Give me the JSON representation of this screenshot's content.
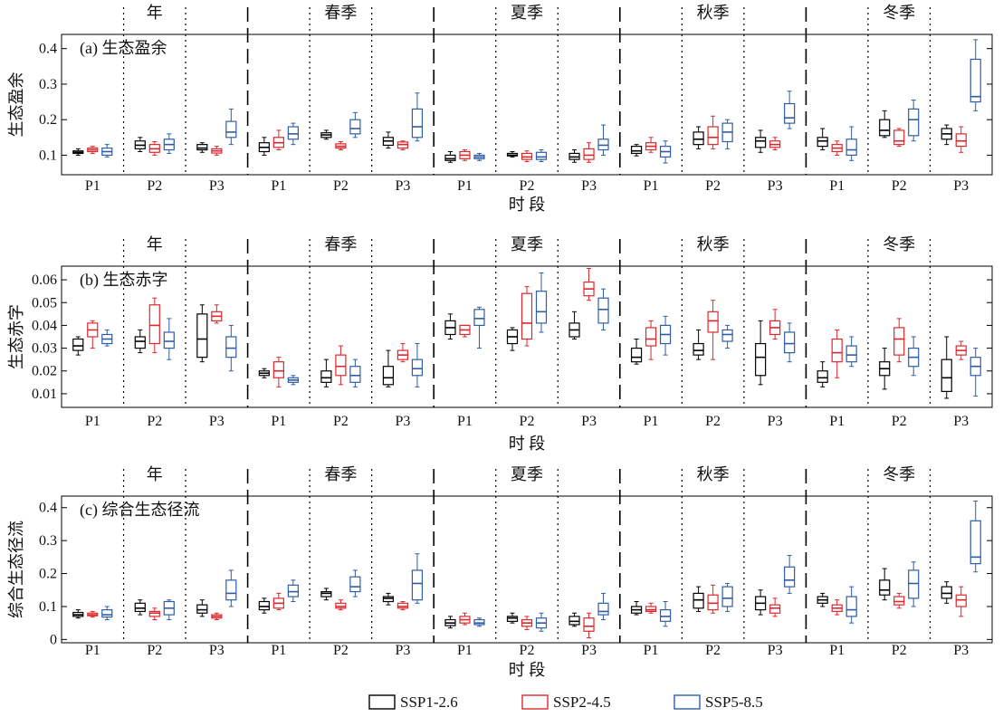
{
  "figure": {
    "seasons": [
      "年",
      "春季",
      "夏季",
      "秋季",
      "冬季"
    ],
    "periods": [
      "P1",
      "P2",
      "P3"
    ],
    "xlabel": "时 段"
  },
  "legend": [
    {
      "name": "SSP1-2.6",
      "color": "#000000"
    },
    {
      "name": "SSP2-4.5",
      "color": "#e0262b"
    },
    {
      "name": "SSP5-8.5",
      "color": "#2e5da6"
    }
  ],
  "chart_data": [
    {
      "type": "box",
      "title": "(a) 生态盈余",
      "ylabel": "生态盈余",
      "xlabel": "时 段",
      "ylim": [
        0.045,
        0.44
      ],
      "yticks": [
        0.1,
        0.2,
        0.3,
        0.4
      ],
      "ytick_labels": [
        "0.1",
        "0.2",
        "0.3",
        "0.4"
      ],
      "grid": false,
      "legend_position": "bottom",
      "boxes": [
        [
          [
            0.1,
            0.105,
            0.108,
            0.112,
            0.118
          ],
          [
            0.105,
            0.11,
            0.115,
            0.12,
            0.125
          ],
          [
            0.095,
            0.1,
            0.11,
            0.12,
            0.13
          ]
        ],
        [
          [
            0.11,
            0.118,
            0.128,
            0.14,
            0.15
          ],
          [
            0.1,
            0.108,
            0.118,
            0.13,
            0.138
          ],
          [
            0.105,
            0.115,
            0.13,
            0.145,
            0.16
          ]
        ],
        [
          [
            0.108,
            0.115,
            0.12,
            0.13,
            0.135
          ],
          [
            0.1,
            0.106,
            0.112,
            0.118,
            0.125
          ],
          [
            0.13,
            0.15,
            0.165,
            0.195,
            0.23
          ]
        ],
        [
          [
            0.1,
            0.11,
            0.122,
            0.135,
            0.15
          ],
          [
            0.115,
            0.122,
            0.135,
            0.15,
            0.17
          ],
          [
            0.13,
            0.145,
            0.16,
            0.18,
            0.19
          ]
        ],
        [
          [
            0.145,
            0.15,
            0.157,
            0.163,
            0.17
          ],
          [
            0.115,
            0.12,
            0.125,
            0.132,
            0.138
          ],
          [
            0.15,
            0.16,
            0.175,
            0.2,
            0.22
          ]
        ],
        [
          [
            0.12,
            0.128,
            0.14,
            0.15,
            0.165
          ],
          [
            0.115,
            0.12,
            0.13,
            0.137,
            0.14
          ],
          [
            0.14,
            0.15,
            0.18,
            0.23,
            0.275
          ]
        ],
        [
          [
            0.08,
            0.085,
            0.09,
            0.1,
            0.11
          ],
          [
            0.085,
            0.09,
            0.1,
            0.11,
            0.115
          ],
          [
            0.085,
            0.09,
            0.095,
            0.1,
            0.105
          ]
        ],
        [
          [
            0.095,
            0.098,
            0.1,
            0.105,
            0.11
          ],
          [
            0.082,
            0.088,
            0.095,
            0.105,
            0.112
          ],
          [
            0.082,
            0.088,
            0.095,
            0.108,
            0.115
          ]
        ],
        [
          [
            0.08,
            0.088,
            0.095,
            0.105,
            0.115
          ],
          [
            0.08,
            0.088,
            0.1,
            0.118,
            0.135
          ],
          [
            0.1,
            0.115,
            0.128,
            0.145,
            0.185
          ]
        ],
        [
          [
            0.098,
            0.105,
            0.112,
            0.125,
            0.13
          ],
          [
            0.108,
            0.115,
            0.125,
            0.135,
            0.15
          ],
          [
            0.078,
            0.095,
            0.11,
            0.125,
            0.14
          ]
        ],
        [
          [
            0.118,
            0.13,
            0.145,
            0.165,
            0.18
          ],
          [
            0.118,
            0.13,
            0.15,
            0.18,
            0.21
          ],
          [
            0.118,
            0.138,
            0.165,
            0.19,
            0.2
          ]
        ],
        [
          [
            0.108,
            0.122,
            0.14,
            0.15,
            0.17
          ],
          [
            0.115,
            0.122,
            0.13,
            0.14,
            0.15
          ],
          [
            0.175,
            0.19,
            0.205,
            0.245,
            0.28
          ]
        ],
        [
          [
            0.115,
            0.125,
            0.14,
            0.15,
            0.175
          ],
          [
            0.1,
            0.11,
            0.12,
            0.13,
            0.14
          ],
          [
            0.085,
            0.1,
            0.115,
            0.145,
            0.18
          ]
        ],
        [
          [
            0.15,
            0.155,
            0.17,
            0.2,
            0.225
          ],
          [
            0.125,
            0.13,
            0.14,
            0.17,
            0.175
          ],
          [
            0.14,
            0.155,
            0.2,
            0.23,
            0.255
          ]
        ],
        [
          [
            0.13,
            0.145,
            0.16,
            0.175,
            0.185
          ],
          [
            0.108,
            0.125,
            0.14,
            0.16,
            0.18
          ],
          [
            0.225,
            0.25,
            0.265,
            0.37,
            0.425
          ]
        ]
      ]
    },
    {
      "type": "box",
      "title": "(b) 生态赤字",
      "ylabel": "生态赤字",
      "xlabel": "时 段",
      "ylim": [
        0.004,
        0.066
      ],
      "yticks": [
        0.01,
        0.02,
        0.03,
        0.04,
        0.05,
        0.06
      ],
      "ytick_labels": [
        "0.01",
        "0.02",
        "0.03",
        "0.04",
        "0.05",
        "0.06"
      ],
      "grid": false,
      "legend_position": "bottom",
      "boxes": [
        [
          [
            0.027,
            0.029,
            0.031,
            0.034,
            0.035
          ],
          [
            0.03,
            0.035,
            0.038,
            0.041,
            0.042
          ],
          [
            0.031,
            0.032,
            0.034,
            0.036,
            0.038
          ]
        ],
        [
          [
            0.028,
            0.03,
            0.033,
            0.035,
            0.038
          ],
          [
            0.028,
            0.032,
            0.04,
            0.049,
            0.052
          ],
          [
            0.025,
            0.03,
            0.033,
            0.037,
            0.043
          ]
        ],
        [
          [
            0.024,
            0.026,
            0.034,
            0.045,
            0.049
          ],
          [
            0.041,
            0.042,
            0.044,
            0.046,
            0.049
          ],
          [
            0.02,
            0.026,
            0.03,
            0.035,
            0.04
          ]
        ],
        [
          [
            0.017,
            0.018,
            0.019,
            0.02,
            0.021
          ],
          [
            0.013,
            0.017,
            0.02,
            0.024,
            0.026
          ],
          [
            0.014,
            0.015,
            0.016,
            0.017,
            0.018
          ]
        ],
        [
          [
            0.013,
            0.015,
            0.017,
            0.02,
            0.025
          ],
          [
            0.014,
            0.018,
            0.022,
            0.027,
            0.031
          ],
          [
            0.013,
            0.015,
            0.018,
            0.022,
            0.025
          ]
        ],
        [
          [
            0.013,
            0.014,
            0.017,
            0.022,
            0.029
          ],
          [
            0.024,
            0.025,
            0.027,
            0.029,
            0.032
          ],
          [
            0.013,
            0.018,
            0.021,
            0.025,
            0.032
          ]
        ],
        [
          [
            0.034,
            0.036,
            0.039,
            0.042,
            0.045
          ],
          [
            0.035,
            0.036,
            0.038,
            0.04,
            0.04
          ],
          [
            0.03,
            0.04,
            0.043,
            0.047,
            0.048
          ]
        ],
        [
          [
            0.029,
            0.032,
            0.035,
            0.038,
            0.039
          ],
          [
            0.031,
            0.034,
            0.041,
            0.054,
            0.057
          ],
          [
            0.037,
            0.041,
            0.046,
            0.055,
            0.063
          ]
        ],
        [
          [
            0.034,
            0.035,
            0.038,
            0.041,
            0.046
          ],
          [
            0.051,
            0.053,
            0.056,
            0.059,
            0.065
          ],
          [
            0.038,
            0.041,
            0.047,
            0.052,
            0.056
          ]
        ],
        [
          [
            0.023,
            0.024,
            0.026,
            0.03,
            0.034
          ],
          [
            0.025,
            0.031,
            0.034,
            0.039,
            0.042
          ],
          [
            0.027,
            0.032,
            0.036,
            0.04,
            0.044
          ]
        ],
        [
          [
            0.025,
            0.027,
            0.029,
            0.032,
            0.038
          ],
          [
            0.025,
            0.037,
            0.042,
            0.046,
            0.051
          ],
          [
            0.03,
            0.033,
            0.036,
            0.038,
            0.04
          ]
        ],
        [
          [
            0.014,
            0.018,
            0.026,
            0.032,
            0.042
          ],
          [
            0.034,
            0.036,
            0.039,
            0.042,
            0.047
          ],
          [
            0.024,
            0.028,
            0.032,
            0.037,
            0.041
          ]
        ],
        [
          [
            0.013,
            0.015,
            0.017,
            0.02,
            0.024
          ],
          [
            0.017,
            0.024,
            0.028,
            0.034,
            0.038
          ],
          [
            0.022,
            0.024,
            0.027,
            0.031,
            0.035
          ]
        ],
        [
          [
            0.012,
            0.018,
            0.021,
            0.024,
            0.03
          ],
          [
            0.024,
            0.027,
            0.034,
            0.039,
            0.043
          ],
          [
            0.018,
            0.022,
            0.026,
            0.03,
            0.035
          ]
        ],
        [
          [
            0.008,
            0.011,
            0.017,
            0.025,
            0.035
          ],
          [
            0.025,
            0.027,
            0.029,
            0.031,
            0.033
          ],
          [
            0.009,
            0.018,
            0.022,
            0.026,
            0.03
          ]
        ]
      ]
    },
    {
      "type": "box",
      "title": "(c) 综合生态径流",
      "ylabel": "综合生态径流",
      "xlabel": "时 段",
      "ylim": [
        -0.01,
        0.435
      ],
      "yticks": [
        0,
        0.1,
        0.2,
        0.3,
        0.4
      ],
      "ytick_labels": [
        "0",
        "0.1",
        "0.2",
        "0.3",
        "0.4"
      ],
      "grid": false,
      "legend_position": "bottom",
      "boxes": [
        [
          [
            0.065,
            0.07,
            0.075,
            0.082,
            0.09
          ],
          [
            0.068,
            0.072,
            0.075,
            0.08,
            0.085
          ],
          [
            0.06,
            0.068,
            0.075,
            0.09,
            0.1
          ]
        ],
        [
          [
            0.075,
            0.085,
            0.095,
            0.11,
            0.12
          ],
          [
            0.06,
            0.07,
            0.08,
            0.085,
            0.095
          ],
          [
            0.06,
            0.075,
            0.095,
            0.115,
            0.12
          ]
        ],
        [
          [
            0.07,
            0.08,
            0.09,
            0.105,
            0.12
          ],
          [
            0.06,
            0.065,
            0.07,
            0.075,
            0.08
          ],
          [
            0.1,
            0.12,
            0.14,
            0.18,
            0.21
          ]
        ],
        [
          [
            0.08,
            0.09,
            0.1,
            0.115,
            0.125
          ],
          [
            0.09,
            0.095,
            0.11,
            0.125,
            0.14
          ],
          [
            0.115,
            0.13,
            0.145,
            0.165,
            0.18
          ]
        ],
        [
          [
            0.12,
            0.13,
            0.14,
            0.145,
            0.155
          ],
          [
            0.09,
            0.095,
            0.1,
            0.11,
            0.12
          ],
          [
            0.13,
            0.145,
            0.16,
            0.19,
            0.21
          ]
        ],
        [
          [
            0.105,
            0.115,
            0.125,
            0.13,
            0.14
          ],
          [
            0.09,
            0.095,
            0.1,
            0.11,
            0.115
          ],
          [
            0.11,
            0.12,
            0.17,
            0.21,
            0.26
          ]
        ],
        [
          [
            0.035,
            0.042,
            0.05,
            0.06,
            0.07
          ],
          [
            0.045,
            0.05,
            0.06,
            0.07,
            0.08
          ],
          [
            0.04,
            0.045,
            0.05,
            0.06,
            0.065
          ]
        ],
        [
          [
            0.05,
            0.055,
            0.065,
            0.07,
            0.08
          ],
          [
            0.03,
            0.04,
            0.05,
            0.06,
            0.07
          ],
          [
            0.025,
            0.035,
            0.05,
            0.065,
            0.08
          ]
        ],
        [
          [
            0.04,
            0.045,
            0.055,
            0.07,
            0.08
          ],
          [
            0.005,
            0.025,
            0.04,
            0.065,
            0.08
          ],
          [
            0.06,
            0.075,
            0.085,
            0.11,
            0.14
          ]
        ],
        [
          [
            0.075,
            0.08,
            0.09,
            0.1,
            0.115
          ],
          [
            0.08,
            0.085,
            0.09,
            0.1,
            0.11
          ],
          [
            0.04,
            0.055,
            0.07,
            0.09,
            0.115
          ]
        ],
        [
          [
            0.085,
            0.095,
            0.12,
            0.14,
            0.16
          ],
          [
            0.08,
            0.09,
            0.11,
            0.135,
            0.165
          ],
          [
            0.085,
            0.1,
            0.125,
            0.16,
            0.17
          ]
        ],
        [
          [
            0.075,
            0.09,
            0.11,
            0.13,
            0.15
          ],
          [
            0.07,
            0.08,
            0.095,
            0.105,
            0.125
          ],
          [
            0.14,
            0.16,
            0.18,
            0.22,
            0.255
          ]
        ],
        [
          [
            0.1,
            0.11,
            0.12,
            0.13,
            0.14
          ],
          [
            0.075,
            0.085,
            0.095,
            0.105,
            0.12
          ],
          [
            0.05,
            0.07,
            0.09,
            0.13,
            0.16
          ]
        ],
        [
          [
            0.12,
            0.135,
            0.15,
            0.18,
            0.215
          ],
          [
            0.095,
            0.105,
            0.115,
            0.13,
            0.14
          ],
          [
            0.1,
            0.125,
            0.17,
            0.21,
            0.235
          ]
        ],
        [
          [
            0.11,
            0.125,
            0.14,
            0.16,
            0.175
          ],
          [
            0.07,
            0.1,
            0.12,
            0.135,
            0.16
          ],
          [
            0.205,
            0.23,
            0.25,
            0.36,
            0.42
          ]
        ]
      ]
    }
  ]
}
